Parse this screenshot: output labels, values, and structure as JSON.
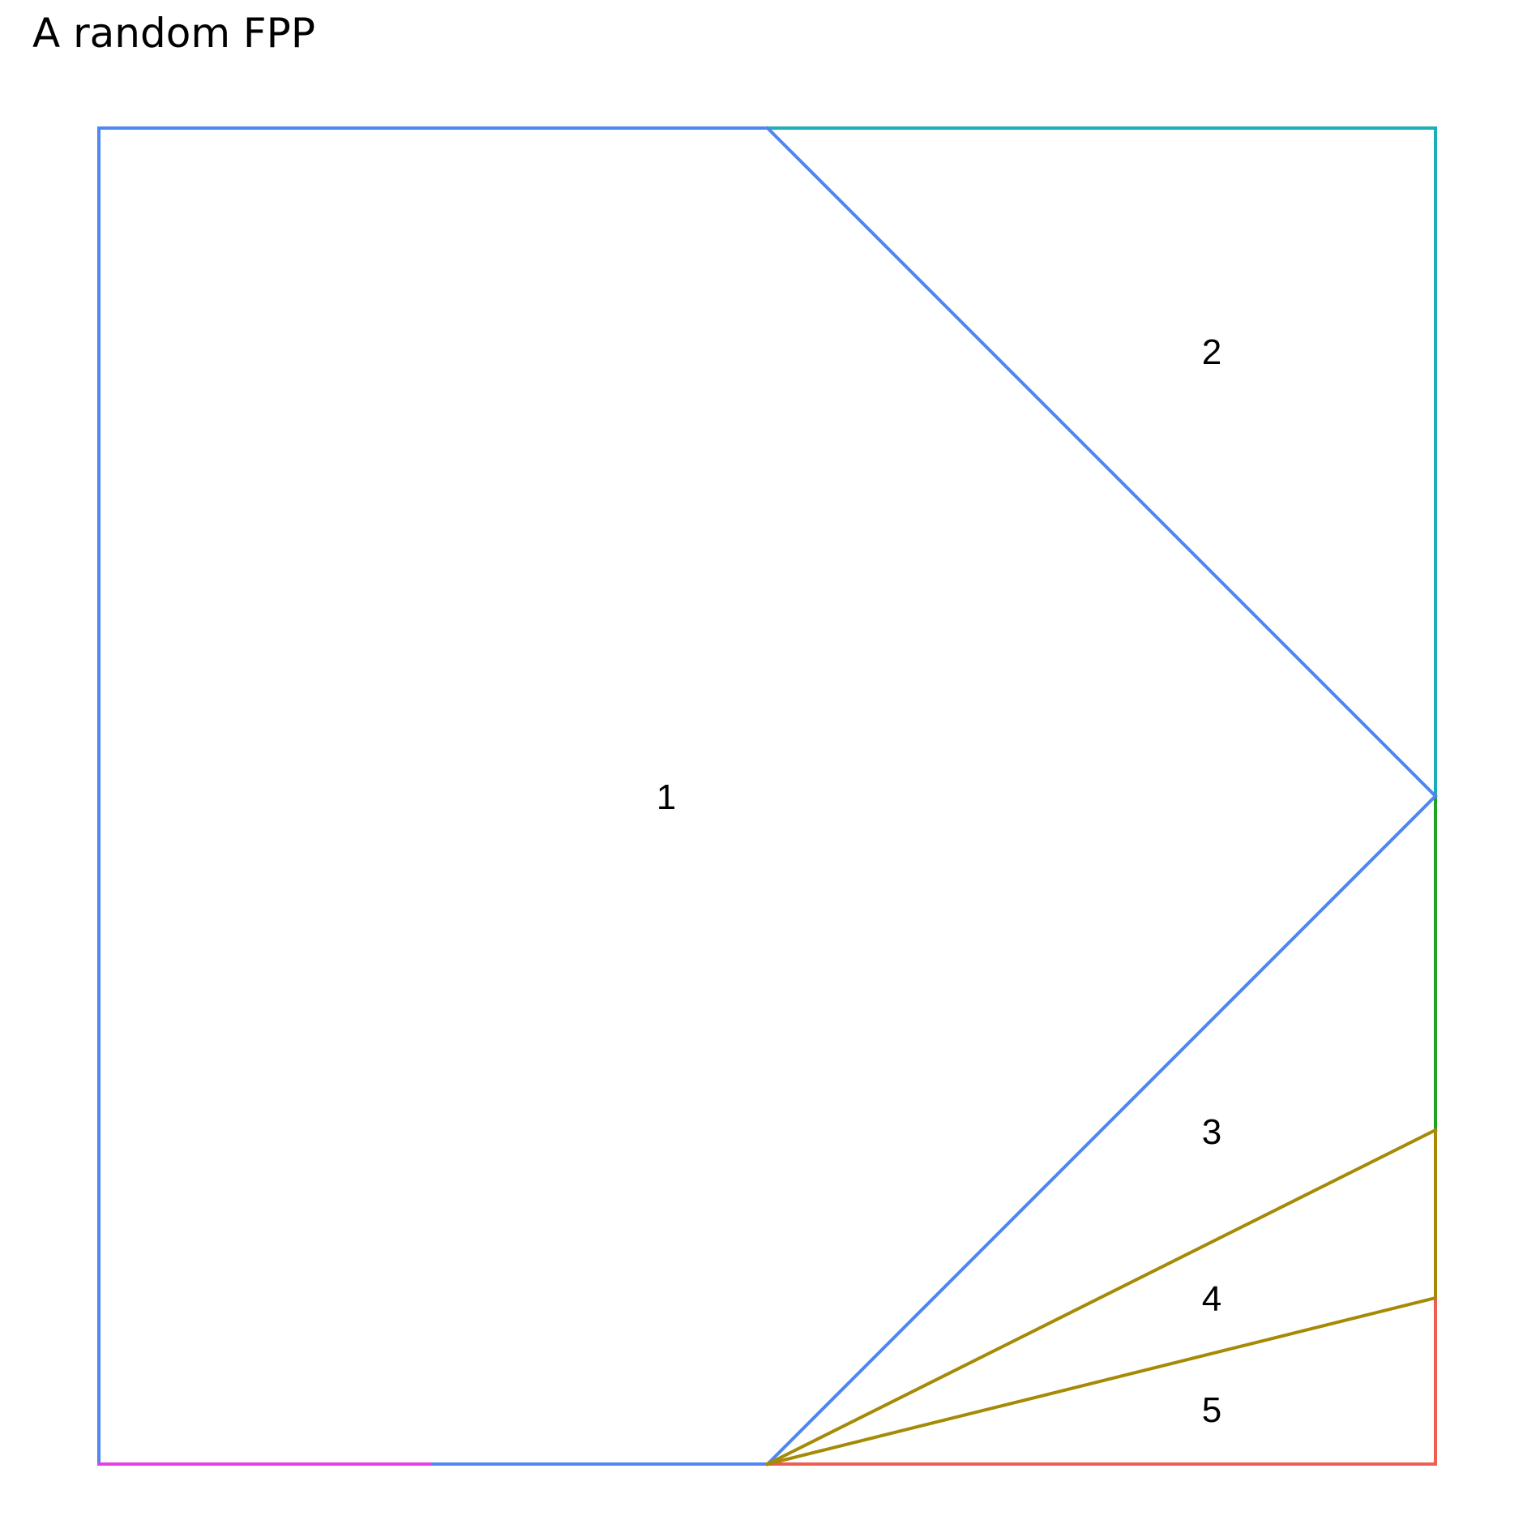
{
  "title": "A random FPP",
  "region_labels": [
    "1",
    "2",
    "3",
    "4",
    "5"
  ],
  "colors": {
    "blue": "#4F86F0",
    "teal": "#1AAFB8",
    "green": "#1FA324",
    "olive": "#A58A06",
    "red": "#EE5E52",
    "magenta": "#E63FE6"
  }
}
